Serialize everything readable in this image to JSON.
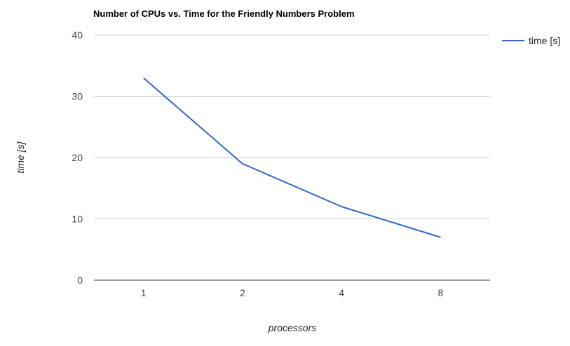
{
  "chart_data": {
    "type": "line",
    "title": "Number of CPUs vs. Time for the Friendly Numbers Problem",
    "xlabel": "processors",
    "ylabel": "time [s]",
    "categories": [
      "1",
      "2",
      "4",
      "8"
    ],
    "series": [
      {
        "name": "time [s]",
        "values": [
          33,
          19,
          12,
          7
        ],
        "color": "#3366cc"
      }
    ],
    "ylim": [
      0,
      40
    ],
    "yticks": [
      "0",
      "10",
      "20",
      "30",
      "40"
    ],
    "grid": true,
    "legend_position": "right"
  }
}
